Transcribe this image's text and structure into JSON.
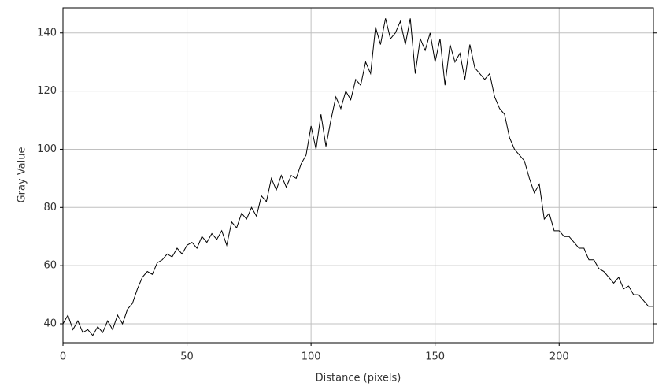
{
  "chart_data": {
    "type": "line",
    "x_label": "Distance (pixels)",
    "y_label": "Gray Value",
    "xlim": [
      0,
      238
    ],
    "ylim": [
      33.5,
      148.6
    ],
    "xticks": [
      0,
      50,
      100,
      150,
      200
    ],
    "yticks": [
      40,
      60,
      80,
      100,
      120,
      140
    ],
    "grid": true,
    "series": [
      {
        "color": "#000000",
        "x": [
          0,
          2,
          4,
          6,
          8,
          10,
          12,
          14,
          16,
          18,
          20,
          22,
          24,
          26,
          28,
          30,
          32,
          34,
          36,
          38,
          40,
          42,
          44,
          46,
          48,
          50,
          52,
          54,
          56,
          58,
          60,
          62,
          64,
          66,
          68,
          70,
          72,
          74,
          76,
          78,
          80,
          82,
          84,
          86,
          88,
          90,
          92,
          94,
          96,
          98,
          100,
          102,
          104,
          106,
          108,
          110,
          112,
          114,
          116,
          118,
          120,
          122,
          124,
          126,
          128,
          130,
          132,
          134,
          136,
          138,
          140,
          142,
          144,
          146,
          148,
          150,
          152,
          154,
          156,
          158,
          160,
          162,
          164,
          166,
          168,
          170,
          172,
          174,
          176,
          178,
          180,
          182,
          184,
          186,
          188,
          190,
          192,
          194,
          196,
          198,
          200,
          202,
          204,
          206,
          208,
          210,
          212,
          214,
          216,
          218,
          220,
          222,
          224,
          226,
          228,
          230,
          232,
          234,
          236,
          238
        ],
        "values": [
          40,
          43,
          38,
          41,
          37,
          38,
          36,
          39,
          37,
          41,
          38,
          43,
          40,
          45,
          47,
          52,
          56,
          58,
          57,
          61,
          62,
          64,
          63,
          66,
          64,
          67,
          68,
          66,
          70,
          68,
          71,
          69,
          72,
          67,
          75,
          73,
          78,
          76,
          80,
          77,
          84,
          82,
          90,
          86,
          91,
          87,
          91,
          90,
          95,
          98,
          108,
          100,
          112,
          101,
          110,
          118,
          114,
          120,
          117,
          124,
          122,
          130,
          126,
          142,
          136,
          145,
          138,
          140,
          144,
          136,
          145,
          126,
          138,
          134,
          140,
          130,
          138,
          122,
          136,
          130,
          133,
          124,
          136,
          128,
          126,
          124,
          126,
          118,
          114,
          112,
          104,
          100,
          98,
          96,
          90,
          85,
          88,
          76,
          78,
          72,
          72,
          70,
          70,
          68,
          66,
          66,
          62,
          62,
          59,
          58,
          56,
          54,
          56,
          52,
          53,
          50,
          50,
          48,
          46,
          46
        ]
      }
    ]
  }
}
